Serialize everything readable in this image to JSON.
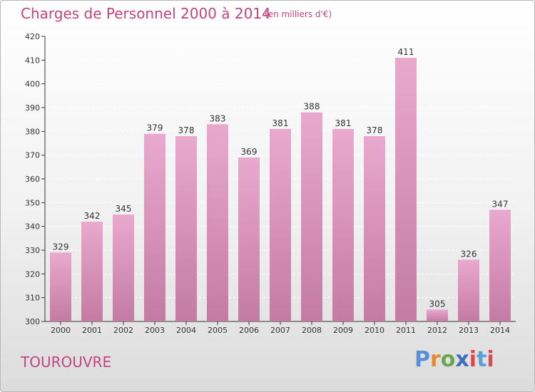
{
  "header": {
    "title": "Charges de Personnel 2000 à 2014",
    "subtitle": "(en milliers d'€)"
  },
  "footer": {
    "commune": "TOUROUVRE",
    "logo_text": "Proxiti"
  },
  "colors": {
    "accent": "#c2457f",
    "bar_top": "#e9a9cf",
    "bar_bottom": "#c47ba3",
    "axis": "#333333"
  },
  "chart_data": {
    "type": "bar",
    "categories": [
      "2000",
      "2001",
      "2002",
      "2003",
      "2004",
      "2005",
      "2006",
      "2007",
      "2008",
      "2009",
      "2010",
      "2011",
      "2012",
      "2013",
      "2014"
    ],
    "values": [
      329,
      342,
      345,
      379,
      378,
      383,
      369,
      381,
      388,
      381,
      378,
      411,
      305,
      326,
      347
    ],
    "title": "Charges de Personnel 2000 à 2014",
    "subtitle": "(en milliers d'€)",
    "xlabel": "",
    "ylabel": "",
    "ylim": [
      300,
      420
    ],
    "yticks": [
      300,
      310,
      320,
      330,
      340,
      350,
      360,
      370,
      380,
      390,
      400,
      410,
      420
    ],
    "grid": true,
    "data_labels": true
  }
}
